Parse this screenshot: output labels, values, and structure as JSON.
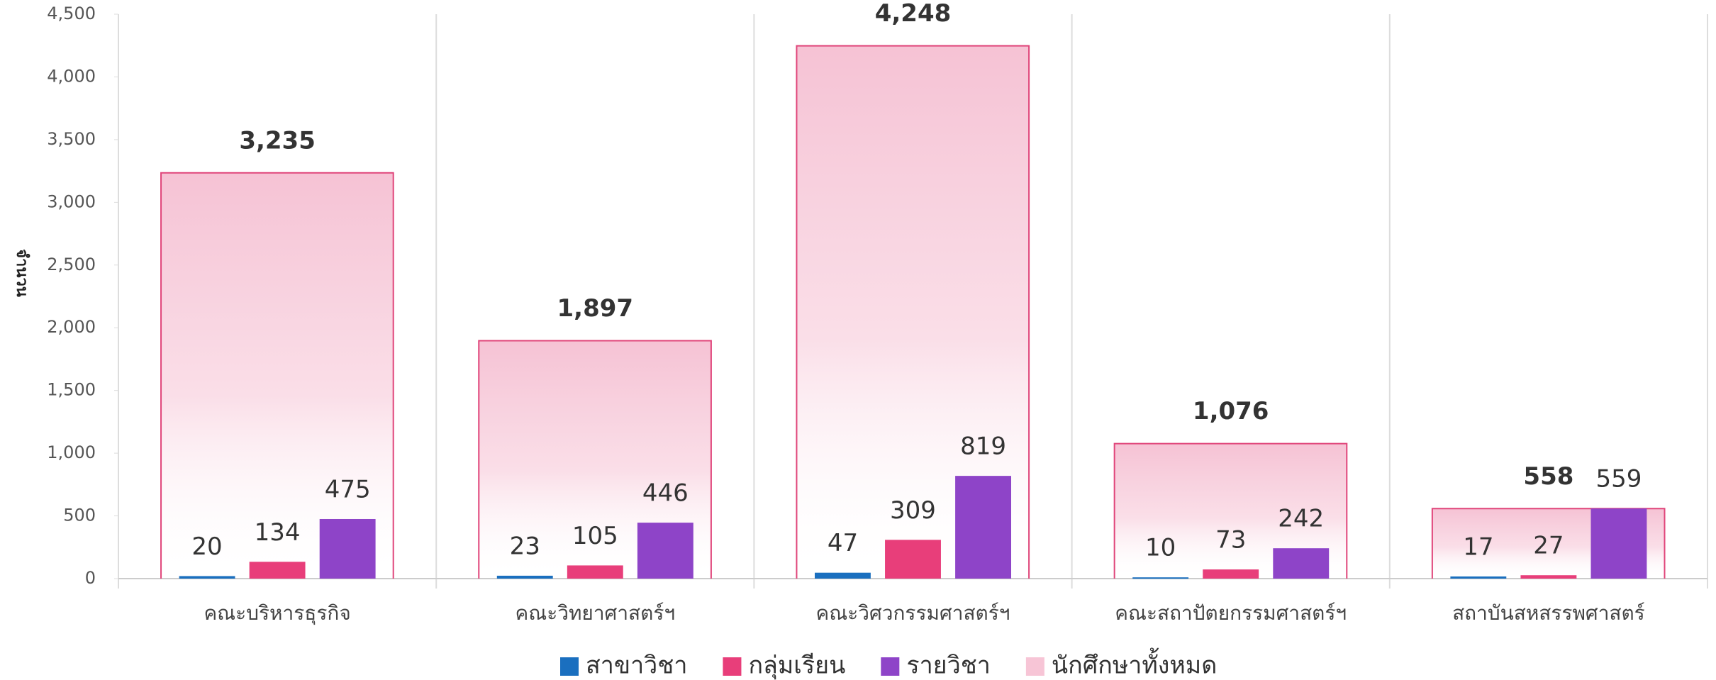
{
  "chart_data": {
    "type": "bar",
    "y_axis_label": "จำนวน",
    "categories": [
      "คณะบริหารธุรกิจ",
      "คณะวิทยาศาสตร์ฯ",
      "คณะวิศวกรรมศาสตร์ฯ",
      "คณะสถาปัตยกรรมศาสตร์ฯ",
      "สถาบันสหสรรพศาสตร์"
    ],
    "series": [
      {
        "name": "สาขาวิชา",
        "color": "#1a6fbf",
        "values": [
          20,
          23,
          47,
          10,
          17
        ]
      },
      {
        "name": "กลุ่มเรียน",
        "color": "#e83e7a",
        "values": [
          134,
          105,
          309,
          73,
          27
        ]
      },
      {
        "name": "รายวิชา",
        "color": "#8e44c8",
        "values": [
          475,
          446,
          819,
          242,
          559
        ]
      },
      {
        "name": "นักศึกษาทั้งหมด",
        "color": "#f7c5d6",
        "values": [
          3235,
          1897,
          4248,
          1076,
          558
        ],
        "value_labels": [
          "3,235",
          "1,897",
          "4,248",
          "1,076",
          "558"
        ]
      }
    ],
    "ylim": [
      0,
      4500
    ],
    "yticks": [
      0,
      500,
      {
        "value": 1000,
        "label": "1,000"
      },
      {
        "value": 1500,
        "label": "1,500"
      },
      {
        "value": 2000,
        "label": "2,000"
      },
      {
        "value": 2500,
        "label": "2,500"
      },
      {
        "value": 3000,
        "label": "3,000"
      },
      {
        "value": 3500,
        "label": "3,500"
      },
      {
        "value": 4000,
        "label": "4,000"
      },
      {
        "value": 4500,
        "label": "4,500"
      }
    ],
    "legend": "bottom"
  }
}
